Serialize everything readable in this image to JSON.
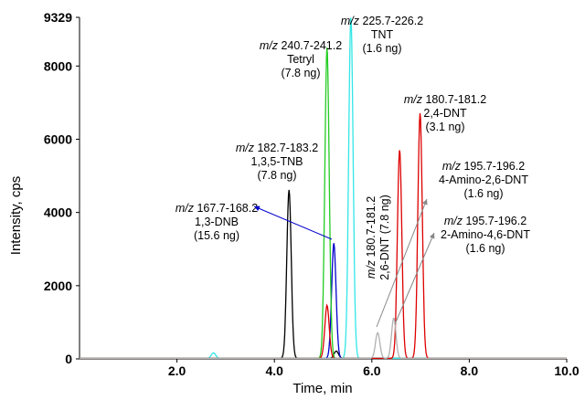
{
  "chart_data": {
    "type": "line",
    "xlabel": "Time, min",
    "ylabel": "Intensity, cps",
    "xlim": [
      0,
      10.0
    ],
    "ylim": [
      0,
      9329
    ],
    "x_ticks": [
      "2.0",
      "4.0",
      "6.0",
      "8.0",
      "10.0"
    ],
    "y_ticks": [
      "0",
      "2000",
      "4000",
      "6000",
      "8000",
      "9329"
    ],
    "grid": false,
    "legend": "none",
    "series": [
      {
        "color": "#000000",
        "x": [
          4.3,
          5.27
        ],
        "y": [
          4600,
          200
        ]
      },
      {
        "color": "#0000cc",
        "x": [
          5.22
        ],
        "y": [
          3150
        ]
      },
      {
        "color": "#22cc22",
        "x": [
          5.08
        ],
        "y": [
          8500
        ]
      },
      {
        "color": "#33e6e6",
        "x": [
          2.75,
          5.57
        ],
        "y": [
          150,
          9329
        ]
      },
      {
        "color": "#dd0000",
        "x": [
          5.08,
          6.57,
          6.99
        ],
        "y": [
          1450,
          5700,
          6700
        ]
      },
      {
        "color": "#b0b0b0",
        "x": [
          6.12,
          6.45
        ],
        "y": [
          700,
          1100
        ]
      }
    ],
    "annotations": [
      {
        "mz_prefix": "m/z",
        "mz": "225.7-226.2",
        "name": "TNT",
        "amount": "(1.6 ng)"
      },
      {
        "mz_prefix": "m/z",
        "mz": "240.7-241.2",
        "name": "Tetryl",
        "amount": "(7.8 ng)"
      },
      {
        "mz_prefix": "m/z",
        "mz": "180.7-181.2",
        "name": "2,4-DNT",
        "amount": "(3.1 ng)"
      },
      {
        "mz_prefix": "m/z",
        "mz": "182.7-183.2",
        "name": "1,3,5-TNB",
        "amount": "(7.8 ng)"
      },
      {
        "mz_prefix": "m/z",
        "mz": "195.7-196.2",
        "name": "4-Amino-2,6-DNT",
        "amount": "(1.6 ng)"
      },
      {
        "mz_prefix": "m/z",
        "mz": "167.7-168.2",
        "name": "1,3-DNB",
        "amount": "(15.6 ng)"
      },
      {
        "mz_prefix": "m/z",
        "mz": "195.7-196.2",
        "name": "2-Amino-4,6-DNT",
        "amount": "(1.6 ng)"
      },
      {
        "mz_prefix": "m/z",
        "mz": "180.7-181.2",
        "name": "2,6-DNT (7.8 ng)",
        "amount": ""
      }
    ]
  }
}
